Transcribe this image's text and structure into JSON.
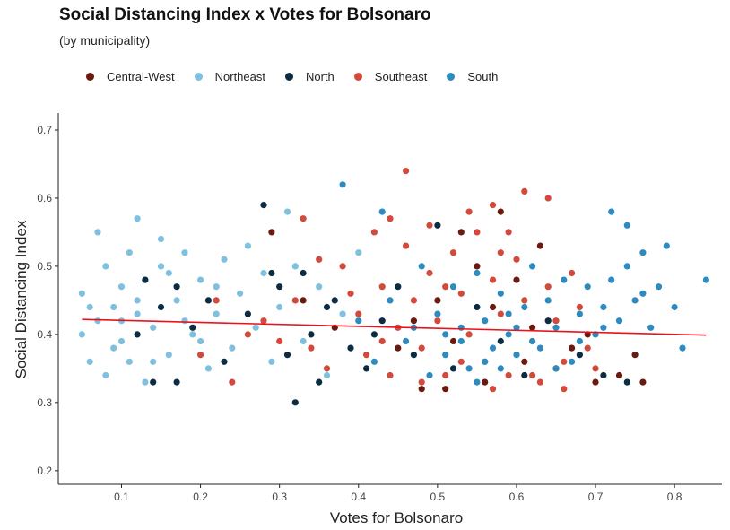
{
  "chart_data": {
    "type": "scatter",
    "title": "Social Distancing Index x Votes for Bolsonaro",
    "subtitle": "(by municipality)",
    "xlabel": "Votes for Bolsonaro",
    "ylabel": "Social Distancing Index",
    "xlim": [
      0.02,
      0.86
    ],
    "ylim": [
      0.18,
      0.725
    ],
    "x_ticks": [
      0.1,
      0.2,
      0.3,
      0.4,
      0.5,
      0.6,
      0.7,
      0.8
    ],
    "x_tick_labels": [
      "0.1",
      "0.2",
      "0.3",
      "0.4",
      "0.5",
      "0.6",
      "0.7",
      "0.8"
    ],
    "y_ticks": [
      0.2,
      0.3,
      0.4,
      0.5,
      0.6,
      0.7
    ],
    "y_tick_labels": [
      "0.2",
      "0.3",
      "0.4",
      "0.5",
      "0.6",
      "0.7"
    ],
    "grid": false,
    "legend_position": "top-left",
    "trend_line": {
      "color": "#e8141c",
      "x": [
        0.05,
        0.84
      ],
      "y": [
        0.422,
        0.399
      ]
    },
    "series": [
      {
        "name": "Central-West",
        "color": "#6b1a10",
        "points": [
          [
            0.29,
            0.55
          ],
          [
            0.33,
            0.45
          ],
          [
            0.37,
            0.41
          ],
          [
            0.45,
            0.38
          ],
          [
            0.48,
            0.32
          ],
          [
            0.5,
            0.45
          ],
          [
            0.52,
            0.39
          ],
          [
            0.55,
            0.5
          ],
          [
            0.57,
            0.44
          ],
          [
            0.58,
            0.58
          ],
          [
            0.6,
            0.48
          ],
          [
            0.62,
            0.41
          ],
          [
            0.63,
            0.53
          ],
          [
            0.65,
            0.35
          ],
          [
            0.67,
            0.38
          ],
          [
            0.7,
            0.33
          ],
          [
            0.73,
            0.34
          ],
          [
            0.75,
            0.37
          ],
          [
            0.76,
            0.33
          ],
          [
            0.56,
            0.33
          ],
          [
            0.51,
            0.32
          ],
          [
            0.47,
            0.42
          ],
          [
            0.53,
            0.55
          ],
          [
            0.61,
            0.36
          ],
          [
            0.69,
            0.4
          ]
        ]
      },
      {
        "name": "Northeast",
        "color": "#7ec0dd",
        "points": [
          [
            0.07,
            0.55
          ],
          [
            0.12,
            0.57
          ],
          [
            0.15,
            0.54
          ],
          [
            0.05,
            0.46
          ],
          [
            0.05,
            0.4
          ],
          [
            0.06,
            0.36
          ],
          [
            0.08,
            0.5
          ],
          [
            0.08,
            0.34
          ],
          [
            0.09,
            0.44
          ],
          [
            0.1,
            0.47
          ],
          [
            0.1,
            0.39
          ],
          [
            0.11,
            0.52
          ],
          [
            0.11,
            0.36
          ],
          [
            0.12,
            0.43
          ],
          [
            0.13,
            0.48
          ],
          [
            0.13,
            0.33
          ],
          [
            0.14,
            0.41
          ],
          [
            0.15,
            0.5
          ],
          [
            0.16,
            0.37
          ],
          [
            0.17,
            0.45
          ],
          [
            0.18,
            0.52
          ],
          [
            0.19,
            0.4
          ],
          [
            0.2,
            0.48
          ],
          [
            0.21,
            0.35
          ],
          [
            0.22,
            0.43
          ],
          [
            0.23,
            0.51
          ],
          [
            0.24,
            0.38
          ],
          [
            0.25,
            0.46
          ],
          [
            0.26,
            0.53
          ],
          [
            0.27,
            0.41
          ],
          [
            0.28,
            0.49
          ],
          [
            0.29,
            0.36
          ],
          [
            0.3,
            0.44
          ],
          [
            0.31,
            0.58
          ],
          [
            0.32,
            0.5
          ],
          [
            0.33,
            0.39
          ],
          [
            0.35,
            0.47
          ],
          [
            0.36,
            0.34
          ],
          [
            0.38,
            0.43
          ],
          [
            0.4,
            0.52
          ],
          [
            0.07,
            0.42
          ],
          [
            0.09,
            0.38
          ],
          [
            0.12,
            0.45
          ],
          [
            0.14,
            0.36
          ],
          [
            0.16,
            0.49
          ],
          [
            0.18,
            0.42
          ],
          [
            0.2,
            0.39
          ],
          [
            0.22,
            0.47
          ],
          [
            0.1,
            0.42
          ],
          [
            0.06,
            0.44
          ]
        ]
      },
      {
        "name": "North",
        "color": "#0c2c44",
        "points": [
          [
            0.28,
            0.59
          ],
          [
            0.32,
            0.3
          ],
          [
            0.14,
            0.33
          ],
          [
            0.17,
            0.47
          ],
          [
            0.13,
            0.48
          ],
          [
            0.12,
            0.4
          ],
          [
            0.15,
            0.44
          ],
          [
            0.17,
            0.33
          ],
          [
            0.19,
            0.41
          ],
          [
            0.21,
            0.45
          ],
          [
            0.23,
            0.36
          ],
          [
            0.26,
            0.43
          ],
          [
            0.3,
            0.47
          ],
          [
            0.31,
            0.37
          ],
          [
            0.33,
            0.49
          ],
          [
            0.34,
            0.4
          ],
          [
            0.35,
            0.33
          ],
          [
            0.37,
            0.45
          ],
          [
            0.39,
            0.38
          ],
          [
            0.41,
            0.35
          ],
          [
            0.43,
            0.42
          ],
          [
            0.45,
            0.47
          ],
          [
            0.47,
            0.37
          ],
          [
            0.5,
            0.56
          ],
          [
            0.52,
            0.35
          ],
          [
            0.55,
            0.44
          ],
          [
            0.58,
            0.39
          ],
          [
            0.61,
            0.34
          ],
          [
            0.64,
            0.42
          ],
          [
            0.68,
            0.37
          ],
          [
            0.71,
            0.34
          ],
          [
            0.74,
            0.33
          ],
          [
            0.29,
            0.49
          ],
          [
            0.36,
            0.44
          ],
          [
            0.42,
            0.4
          ]
        ]
      },
      {
        "name": "Southeast",
        "color": "#d24a3c",
        "points": [
          [
            0.46,
            0.64
          ],
          [
            0.61,
            0.61
          ],
          [
            0.64,
            0.6
          ],
          [
            0.57,
            0.59
          ],
          [
            0.33,
            0.57
          ],
          [
            0.2,
            0.37
          ],
          [
            0.22,
            0.45
          ],
          [
            0.24,
            0.33
          ],
          [
            0.26,
            0.4
          ],
          [
            0.28,
            0.42
          ],
          [
            0.3,
            0.39
          ],
          [
            0.32,
            0.45
          ],
          [
            0.34,
            0.38
          ],
          [
            0.36,
            0.35
          ],
          [
            0.38,
            0.5
          ],
          [
            0.4,
            0.43
          ],
          [
            0.41,
            0.37
          ],
          [
            0.42,
            0.55
          ],
          [
            0.43,
            0.47
          ],
          [
            0.44,
            0.34
          ],
          [
            0.45,
            0.41
          ],
          [
            0.46,
            0.53
          ],
          [
            0.47,
            0.45
          ],
          [
            0.48,
            0.38
          ],
          [
            0.49,
            0.49
          ],
          [
            0.5,
            0.42
          ],
          [
            0.51,
            0.34
          ],
          [
            0.52,
            0.52
          ],
          [
            0.53,
            0.46
          ],
          [
            0.54,
            0.4
          ],
          [
            0.55,
            0.55
          ],
          [
            0.56,
            0.36
          ],
          [
            0.57,
            0.48
          ],
          [
            0.58,
            0.43
          ],
          [
            0.59,
            0.34
          ],
          [
            0.6,
            0.51
          ],
          [
            0.61,
            0.45
          ],
          [
            0.62,
            0.39
          ],
          [
            0.63,
            0.33
          ],
          [
            0.64,
            0.47
          ],
          [
            0.65,
            0.42
          ],
          [
            0.66,
            0.36
          ],
          [
            0.67,
            0.49
          ],
          [
            0.68,
            0.44
          ],
          [
            0.69,
            0.38
          ],
          [
            0.7,
            0.35
          ],
          [
            0.44,
            0.57
          ],
          [
            0.49,
            0.56
          ],
          [
            0.54,
            0.58
          ],
          [
            0.59,
            0.55
          ],
          [
            0.39,
            0.46
          ],
          [
            0.48,
            0.33
          ],
          [
            0.53,
            0.36
          ],
          [
            0.57,
            0.32
          ],
          [
            0.62,
            0.34
          ],
          [
            0.66,
            0.32
          ],
          [
            0.35,
            0.51
          ],
          [
            0.43,
            0.39
          ],
          [
            0.51,
            0.47
          ],
          [
            0.58,
            0.52
          ]
        ]
      },
      {
        "name": "South",
        "color": "#2e8bbf",
        "points": [
          [
            0.38,
            0.62
          ],
          [
            0.84,
            0.48
          ],
          [
            0.81,
            0.38
          ],
          [
            0.72,
            0.58
          ],
          [
            0.43,
            0.58
          ],
          [
            0.74,
            0.56
          ],
          [
            0.4,
            0.42
          ],
          [
            0.42,
            0.36
          ],
          [
            0.44,
            0.45
          ],
          [
            0.46,
            0.39
          ],
          [
            0.48,
            0.5
          ],
          [
            0.49,
            0.34
          ],
          [
            0.5,
            0.43
          ],
          [
            0.51,
            0.37
          ],
          [
            0.52,
            0.47
          ],
          [
            0.53,
            0.41
          ],
          [
            0.54,
            0.35
          ],
          [
            0.55,
            0.49
          ],
          [
            0.56,
            0.42
          ],
          [
            0.57,
            0.38
          ],
          [
            0.58,
            0.46
          ],
          [
            0.59,
            0.4
          ],
          [
            0.6,
            0.37
          ],
          [
            0.61,
            0.44
          ],
          [
            0.62,
            0.5
          ],
          [
            0.63,
            0.38
          ],
          [
            0.64,
            0.45
          ],
          [
            0.65,
            0.41
          ],
          [
            0.66,
            0.48
          ],
          [
            0.67,
            0.36
          ],
          [
            0.68,
            0.43
          ],
          [
            0.69,
            0.47
          ],
          [
            0.7,
            0.4
          ],
          [
            0.71,
            0.44
          ],
          [
            0.72,
            0.48
          ],
          [
            0.73,
            0.42
          ],
          [
            0.74,
            0.5
          ],
          [
            0.75,
            0.45
          ],
          [
            0.76,
            0.52
          ],
          [
            0.77,
            0.41
          ],
          [
            0.78,
            0.47
          ],
          [
            0.79,
            0.53
          ],
          [
            0.8,
            0.44
          ],
          [
            0.53,
            0.39
          ],
          [
            0.56,
            0.36
          ],
          [
            0.59,
            0.43
          ],
          [
            0.62,
            0.39
          ],
          [
            0.65,
            0.35
          ],
          [
            0.47,
            0.41
          ],
          [
            0.51,
            0.4
          ],
          [
            0.55,
            0.33
          ],
          [
            0.58,
            0.35
          ],
          [
            0.6,
            0.41
          ],
          [
            0.68,
            0.39
          ],
          [
            0.71,
            0.41
          ],
          [
            0.76,
            0.46
          ]
        ]
      }
    ]
  }
}
